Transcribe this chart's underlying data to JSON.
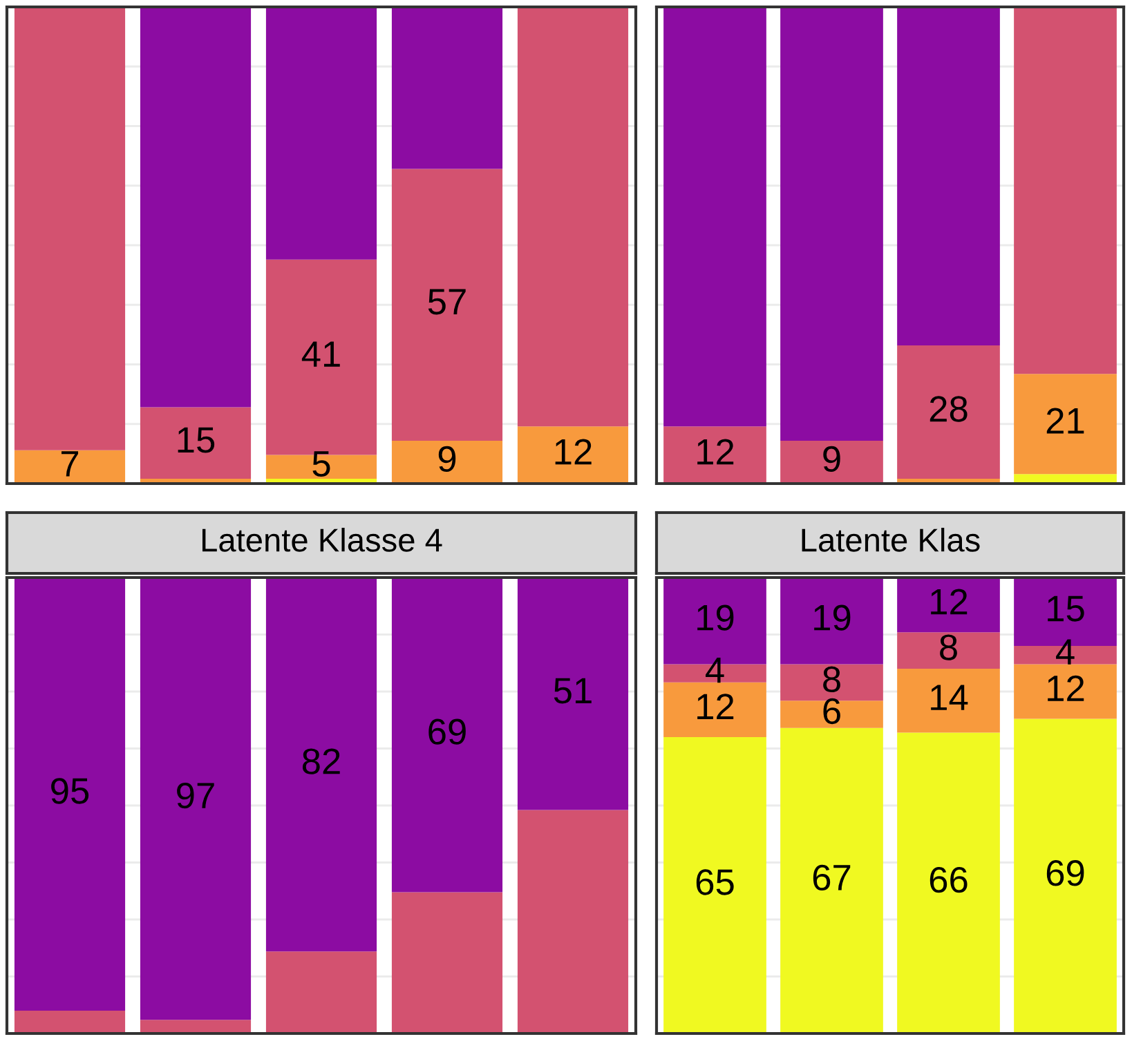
{
  "chart_data": [
    {
      "type": "bar",
      "stacked": true,
      "categories": [
        null,
        null,
        null,
        null,
        null
      ],
      "ylim": [
        0,
        100
      ],
      "yticks": [
        {
          "value": 0,
          "label": null
        },
        {
          "value": 12.5,
          "label": null
        },
        {
          "value": 25,
          "label": null
        },
        {
          "value": 37.5,
          "label": null
        },
        {
          "value": 50,
          "label": null
        },
        {
          "value": 62.5,
          "label": null
        },
        {
          "value": 75,
          "label": null
        },
        {
          "value": 87.5,
          "label": null
        },
        {
          "value": 100,
          "label": null
        }
      ],
      "grid": "y",
      "series": [
        {
          "color": "#f0f921",
          "values": [
            null,
            null,
            1,
            null,
            null
          ],
          "value_labels": [
            null,
            null,
            null,
            null,
            null
          ]
        },
        {
          "color": "#f89a3d",
          "values": [
            7,
            1,
            5,
            9,
            12
          ],
          "value_labels": [
            "7",
            null,
            "5",
            "9",
            "12"
          ]
        },
        {
          "color": "#d35270",
          "values": [
            93,
            15,
            41,
            57,
            88
          ],
          "value_labels": [
            null,
            "15",
            "41",
            "57",
            null
          ]
        },
        {
          "color": "#8c0ca2",
          "values": [
            null,
            84,
            53,
            34,
            null
          ],
          "value_labels": [
            null,
            null,
            null,
            null,
            null
          ]
        }
      ]
    },
    {
      "type": "bar",
      "stacked": true,
      "categories": [
        null,
        null,
        null,
        null
      ],
      "ylim": [
        0,
        100
      ],
      "yticks": [
        {
          "value": 0,
          "label": null
        },
        {
          "value": 12.5,
          "label": null
        },
        {
          "value": 25,
          "label": null
        },
        {
          "value": 37.5,
          "label": null
        },
        {
          "value": 50,
          "label": null
        },
        {
          "value": 62.5,
          "label": null
        },
        {
          "value": 75,
          "label": null
        },
        {
          "value": 87.5,
          "label": null
        },
        {
          "value": 100,
          "label": null
        }
      ],
      "grid": "y",
      "series": [
        {
          "color": "#f0f921",
          "values": [
            null,
            null,
            null,
            2
          ],
          "value_labels": [
            null,
            null,
            null,
            null
          ]
        },
        {
          "color": "#f89a3d",
          "values": [
            null,
            null,
            1,
            21
          ],
          "value_labels": [
            null,
            null,
            null,
            "21"
          ]
        },
        {
          "color": "#d35270",
          "values": [
            12,
            9,
            28,
            77
          ],
          "value_labels": [
            "12",
            "9",
            "28",
            null
          ]
        },
        {
          "color": "#8c0ca2",
          "values": [
            88,
            91,
            71,
            null
          ],
          "value_labels": [
            null,
            null,
            null,
            null
          ]
        }
      ]
    },
    {
      "type": "bar",
      "stacked": true,
      "title": "Latente Klasse 4",
      "categories": [
        null,
        null,
        null,
        null,
        null
      ],
      "ylim": [
        0,
        100
      ],
      "yticks": [
        {
          "value": 0,
          "label": null
        },
        {
          "value": 12.5,
          "label": null
        },
        {
          "value": 25,
          "label": null
        },
        {
          "value": 37.5,
          "label": null
        },
        {
          "value": 50,
          "label": null
        },
        {
          "value": 62.5,
          "label": null
        },
        {
          "value": 75,
          "label": null
        },
        {
          "value": 87.5,
          "label": null
        },
        {
          "value": 100,
          "label": null
        }
      ],
      "grid": "y",
      "series": [
        {
          "color": "#d35270",
          "values": [
            5,
            3,
            18,
            31,
            49
          ],
          "value_labels": [
            null,
            null,
            null,
            null,
            null
          ]
        },
        {
          "color": "#8c0ca2",
          "values": [
            95,
            97,
            82,
            69,
            51
          ],
          "value_labels": [
            "95",
            "97",
            "82",
            "69",
            "51"
          ]
        }
      ]
    },
    {
      "type": "bar",
      "stacked": true,
      "title": "Latente Klas",
      "categories": [
        null,
        null,
        null,
        null
      ],
      "ylim": [
        0,
        100
      ],
      "yticks": [
        {
          "value": 0,
          "label": null
        },
        {
          "value": 12.5,
          "label": null
        },
        {
          "value": 25,
          "label": null
        },
        {
          "value": 37.5,
          "label": null
        },
        {
          "value": 50,
          "label": null
        },
        {
          "value": 62.5,
          "label": null
        },
        {
          "value": 75,
          "label": null
        },
        {
          "value": 87.5,
          "label": null
        },
        {
          "value": 100,
          "label": null
        }
      ],
      "grid": "y",
      "series": [
        {
          "color": "#f0f921",
          "values": [
            65,
            67,
            66,
            69
          ],
          "value_labels": [
            "65",
            "67",
            "66",
            "69"
          ]
        },
        {
          "color": "#f89a3d",
          "values": [
            12,
            6,
            14,
            12
          ],
          "value_labels": [
            "12",
            "6",
            "14",
            "12"
          ]
        },
        {
          "color": "#d35270",
          "values": [
            4,
            8,
            8,
            4
          ],
          "value_labels": [
            "4",
            "8",
            "8",
            "4"
          ]
        },
        {
          "color": "#8c0ca2",
          "values": [
            19,
            19,
            12,
            15
          ],
          "value_labels": [
            "19",
            "19",
            "12",
            "15"
          ]
        }
      ]
    }
  ]
}
